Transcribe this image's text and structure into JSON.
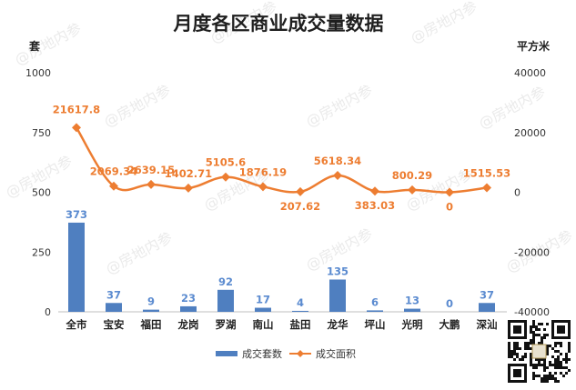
{
  "chart_data": {
    "type": "bar+line",
    "title": "月度各区商业成交量数据",
    "left_axis_unit": "套",
    "right_axis_unit": "平方米",
    "categories": [
      "全市",
      "宝安",
      "福田",
      "龙岗",
      "罗湖",
      "南山",
      "盐田",
      "龙华",
      "坪山",
      "光明",
      "大鹏",
      "深汕"
    ],
    "series": [
      {
        "name": "成交套数",
        "type": "bar",
        "axis": "left",
        "values": [
          373,
          37,
          9,
          23,
          92,
          17,
          4,
          135,
          6,
          13,
          0,
          37
        ],
        "labels": [
          "373",
          "37",
          "9",
          "23",
          "92",
          "17",
          "4",
          "135",
          "6",
          "13",
          "0",
          "37"
        ]
      },
      {
        "name": "成交面积",
        "type": "line",
        "axis": "right",
        "values": [
          21617.8,
          2069.34,
          2639.15,
          1402.71,
          5105.6,
          1876.19,
          207.62,
          5618.34,
          383.03,
          800.29,
          0,
          1515.53
        ],
        "labels": [
          "21617.8",
          "2069.34",
          "2639.15",
          "1402.71",
          "5105.6",
          "1876.19",
          "207.62",
          "5618.34",
          "383.03",
          "800.29",
          "0",
          "1515.53"
        ]
      }
    ],
    "y_left": {
      "range": [
        0,
        1000
      ],
      "ticks": [
        "0",
        "250",
        "500",
        "750",
        "1000"
      ]
    },
    "y_right": {
      "range": [
        -40000,
        40000
      ],
      "ticks": [
        "-40000",
        "-20000",
        "0",
        "20000",
        "40000"
      ]
    },
    "grid": false,
    "legend_position": "bottom",
    "colors": {
      "bar": "#4f7fc0",
      "line": "#ed7d31"
    }
  },
  "watermark": "@房地内参",
  "qr_code": "qr-code"
}
